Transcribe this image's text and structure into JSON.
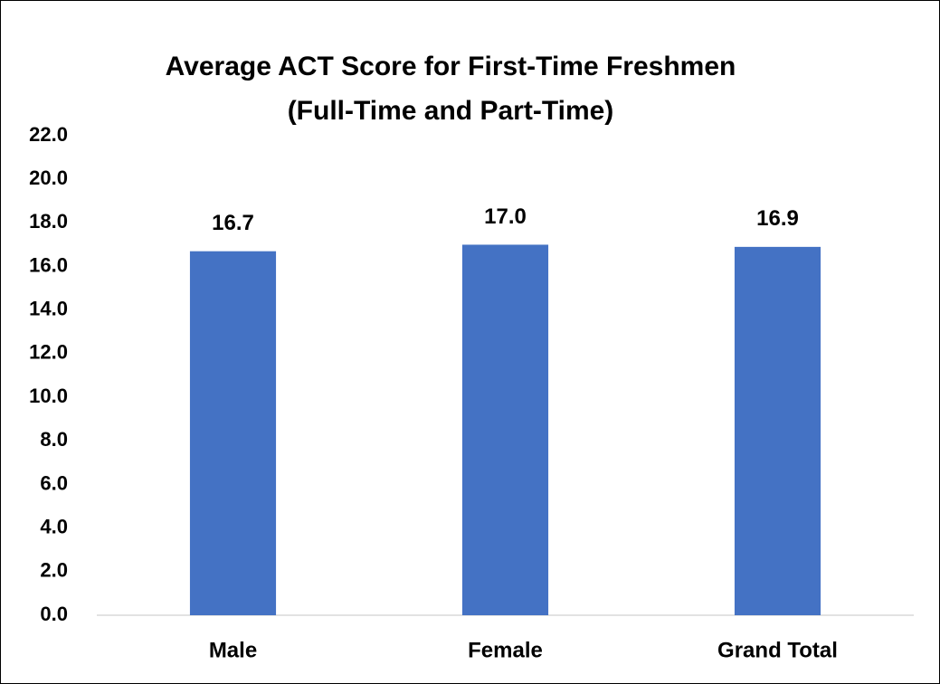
{
  "chart_data": {
    "type": "bar",
    "title": [
      "Average ACT Score for First-Time Freshmen",
      "(Full-Time and Part-Time)"
    ],
    "categories": [
      "Male",
      "Female",
      "Grand Total"
    ],
    "values": [
      16.7,
      17.0,
      16.9
    ],
    "value_labels": [
      "16.7",
      "17.0",
      "16.9"
    ],
    "color": "#4472c4",
    "ylim": [
      0,
      22
    ],
    "yticks": [
      {
        "value": 0,
        "label": "0.0"
      },
      {
        "value": 2,
        "label": "2.0"
      },
      {
        "value": 4,
        "label": "4.0"
      },
      {
        "value": 6,
        "label": "6.0"
      },
      {
        "value": 8,
        "label": "8.0"
      },
      {
        "value": 10,
        "label": "10.0"
      },
      {
        "value": 12,
        "label": "12.0"
      },
      {
        "value": 14,
        "label": "14.0"
      },
      {
        "value": 16,
        "label": "16.0"
      },
      {
        "value": 18,
        "label": "18.0"
      },
      {
        "value": 20,
        "label": "20.0"
      },
      {
        "value": 22,
        "label": "22.0"
      }
    ],
    "grid": false
  }
}
